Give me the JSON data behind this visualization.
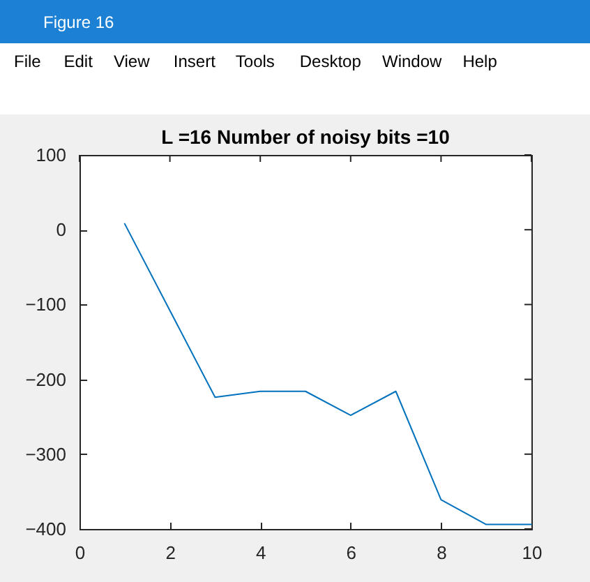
{
  "chart_data": {
    "type": "line",
    "title": "L =16  Number of noisy bits =10",
    "x": [
      1,
      2,
      3,
      4,
      5,
      6,
      7,
      8,
      9,
      10
    ],
    "series": [
      {
        "color": "#0072bd",
        "values": [
          8,
          -108,
          -224,
          -216,
          -216,
          -248,
          -216,
          -361,
          -394,
          -394
        ]
      }
    ],
    "xlim": [
      0,
      10
    ],
    "xticks": [
      0,
      2,
      4,
      6,
      8,
      10
    ],
    "ylim": [
      -400,
      100
    ],
    "yticks": [
      -400,
      -300,
      -200,
      -100,
      0,
      100
    ],
    "grid": false,
    "marker": "none",
    "line_style": "solid",
    "annotations": [
      "Figure 16",
      "File",
      "Edit",
      "View",
      "Insert",
      "Tools",
      "Desktop",
      "Window",
      "Help"
    ]
  }
}
